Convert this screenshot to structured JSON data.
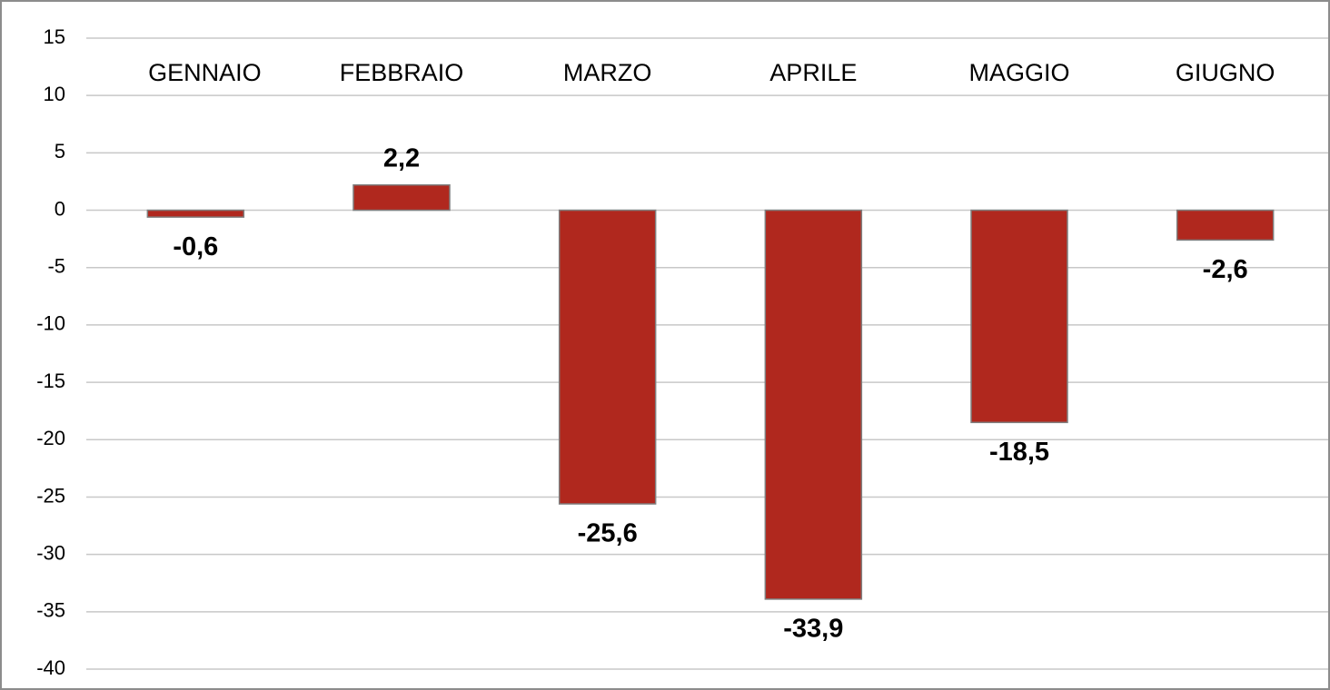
{
  "chart_data": {
    "type": "bar",
    "categories": [
      "GENNAIO",
      "FEBBRAIO",
      "MARZO",
      "APRILE",
      "MAGGIO",
      "GIUGNO"
    ],
    "values": [
      -0.6,
      2.2,
      -25.6,
      -33.9,
      -18.5,
      -2.6
    ],
    "value_labels": [
      "-0,6",
      "2,2",
      "-25,6",
      "-33,9",
      "-18,5",
      "-2,6"
    ],
    "color": "#b0281e",
    "ylim": [
      -40,
      15
    ],
    "yticks": [
      15,
      10,
      5,
      0,
      -5,
      -10,
      -15,
      -20,
      -25,
      -30,
      -35,
      -40
    ],
    "grid": true
  }
}
